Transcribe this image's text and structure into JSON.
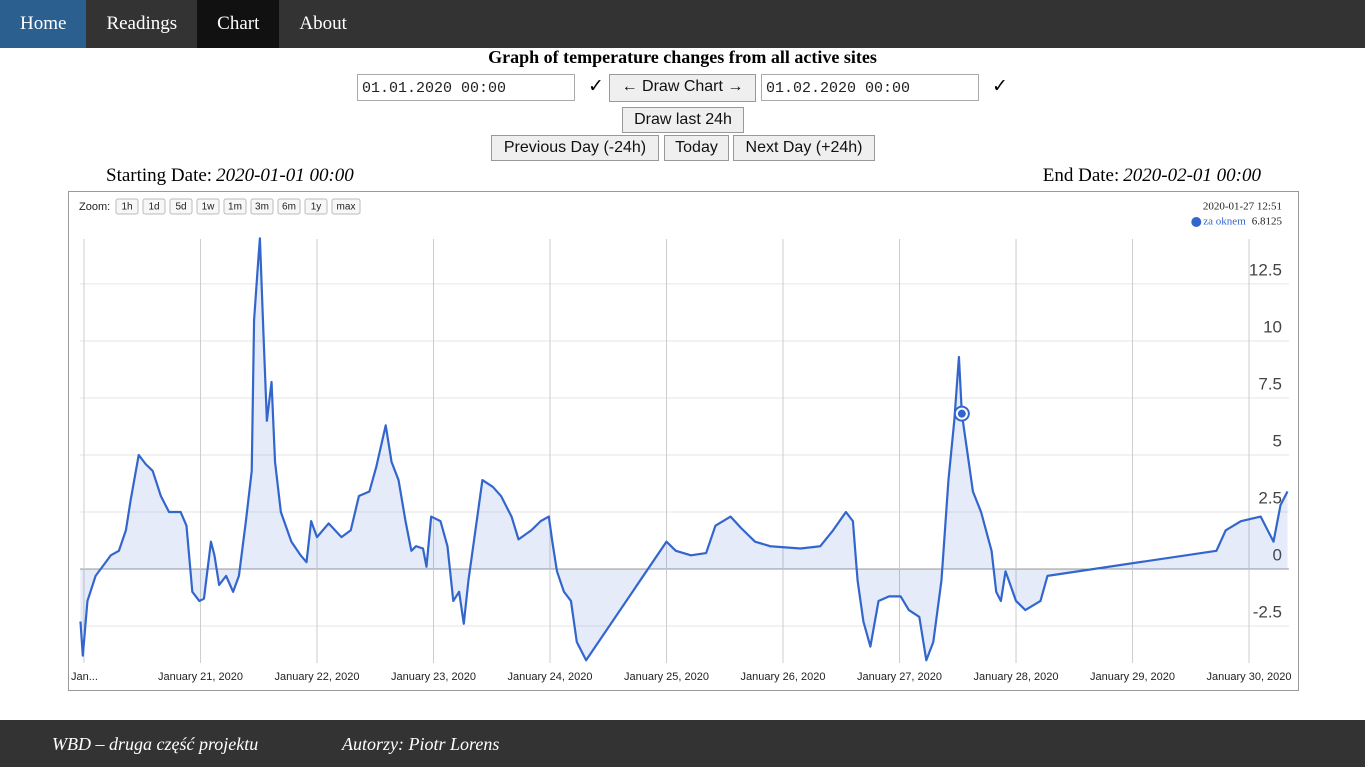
{
  "nav": [
    "Home",
    "Readings",
    "Chart",
    "About"
  ],
  "header": {
    "title": "Graph of temperature changes from all active sites"
  },
  "controls": {
    "start_input": "01.01.2020 00:00",
    "end_input": "01.02.2020 00:00",
    "check": "✓",
    "draw_button": "← Draw Chart →",
    "last_button": "Draw last 24h",
    "prev_button": "Previous Day (-24h)",
    "today_button": "Today",
    "next_button": "Next Day (+24h)"
  },
  "dates": {
    "start_label": "Starting Date:",
    "start_value": "2020-01-01 00:00",
    "end_label": "End Date:",
    "end_value": "2020-02-01 00:00"
  },
  "chart_data": {
    "type": "line",
    "zoom_label": "Zoom:",
    "zoom_options": [
      "1h",
      "1d",
      "5d",
      "1w",
      "1m",
      "3m",
      "6m",
      "1y",
      "max"
    ],
    "xlim": [
      19.966,
      30.343
    ],
    "ylim": [
      -4.12,
      14.47
    ],
    "xticks": [
      {
        "value": 20,
        "label": "Jan..."
      },
      {
        "value": 21,
        "label": "January 21, 2020"
      },
      {
        "value": 22,
        "label": "January 22, 2020"
      },
      {
        "value": 23,
        "label": "January 23, 2020"
      },
      {
        "value": 24,
        "label": "January 24, 2020"
      },
      {
        "value": 25,
        "label": "January 25, 2020"
      },
      {
        "value": 26,
        "label": "January 26, 2020"
      },
      {
        "value": 27,
        "label": "January 27, 2020"
      },
      {
        "value": 28,
        "label": "January 28, 2020"
      },
      {
        "value": 29,
        "label": "January 29, 2020"
      },
      {
        "value": 30,
        "label": "January 30, 2020"
      }
    ],
    "yticks": [
      -2.5,
      0,
      2.5,
      5,
      7.5,
      10,
      12.5
    ],
    "grid": true,
    "area": true,
    "series": [
      {
        "name": "za oknem",
        "color": "#3366cc",
        "x": [
          19.97,
          19.99,
          20.03,
          20.1,
          20.23,
          20.3,
          20.36,
          20.4,
          20.47,
          20.53,
          20.59,
          20.66,
          20.73,
          20.83,
          20.88,
          20.93,
          20.99,
          21.03,
          21.09,
          21.12,
          21.16,
          21.22,
          21.28,
          21.33,
          21.39,
          21.44,
          21.46,
          21.49,
          21.51,
          21.54,
          21.57,
          21.61,
          21.64,
          21.69,
          21.78,
          21.86,
          21.91,
          21.95,
          22.0,
          22.1,
          22.21,
          22.29,
          22.36,
          22.45,
          22.51,
          22.59,
          22.64,
          22.7,
          22.76,
          22.81,
          22.85,
          22.91,
          22.94,
          22.98,
          23.06,
          23.12,
          23.17,
          23.22,
          23.26,
          23.3,
          23.36,
          23.42,
          23.51,
          23.58,
          23.67,
          23.73,
          23.84,
          23.92,
          23.99,
          24.02,
          24.06,
          24.12,
          24.18,
          24.23,
          24.31,
          25.0,
          25.08,
          25.21,
          25.34,
          25.42,
          25.55,
          25.64,
          25.76,
          25.89,
          26.15,
          26.32,
          26.43,
          26.54,
          26.6,
          26.64,
          26.69,
          26.75,
          26.82,
          26.91,
          27.01,
          27.08,
          27.17,
          27.23,
          27.29,
          27.36,
          27.42,
          27.47,
          27.51,
          27.535,
          27.58,
          27.63,
          27.7,
          27.79,
          27.83,
          27.87,
          27.91,
          28.0,
          28.08,
          28.21,
          28.27,
          29.72,
          29.8,
          29.93,
          30.1,
          30.21,
          30.27,
          30.33
        ],
        "values": [
          -2.3,
          -3.8,
          -1.4,
          -0.3,
          0.6,
          0.8,
          1.7,
          3.0,
          5.0,
          4.6,
          4.3,
          3.2,
          2.5,
          2.5,
          1.9,
          -1.0,
          -1.4,
          -1.3,
          1.2,
          0.6,
          -0.7,
          -0.3,
          -1.0,
          -0.3,
          2.1,
          4.3,
          10.9,
          13.1,
          14.5,
          10.4,
          6.5,
          8.2,
          4.7,
          2.5,
          1.2,
          0.6,
          0.3,
          2.1,
          1.4,
          2.0,
          1.4,
          1.7,
          3.2,
          3.4,
          4.5,
          6.3,
          4.7,
          3.9,
          2.1,
          0.8,
          1.0,
          0.9,
          0.1,
          2.3,
          2.1,
          1.0,
          -1.4,
          -1.0,
          -2.4,
          -0.5,
          1.7,
          3.9,
          3.6,
          3.2,
          2.3,
          1.3,
          1.7,
          2.1,
          2.3,
          1.2,
          -0.1,
          -1.0,
          -1.4,
          -3.2,
          -4.0,
          1.2,
          0.8,
          0.6,
          0.7,
          1.9,
          2.3,
          1.8,
          1.2,
          1.0,
          0.9,
          1.0,
          1.7,
          2.5,
          2.1,
          -0.5,
          -2.3,
          -3.4,
          -1.4,
          -1.2,
          -1.2,
          -1.8,
          -2.1,
          -4.0,
          -3.2,
          -0.5,
          3.9,
          6.5,
          9.3,
          6.8125,
          5.2,
          3.4,
          2.5,
          0.8,
          -1.0,
          -1.4,
          -0.1,
          -1.4,
          -1.8,
          -1.4,
          -0.3,
          0.8,
          1.7,
          2.1,
          2.3,
          1.2,
          2.8,
          3.4
        ]
      }
    ],
    "highlight": {
      "label": "2020-01-27 12:51",
      "x": 27.535,
      "value": 6.8125
    }
  },
  "footer": {
    "left": "WBD – druga część projektu",
    "right": "Autorzy: Piotr Lorens"
  }
}
